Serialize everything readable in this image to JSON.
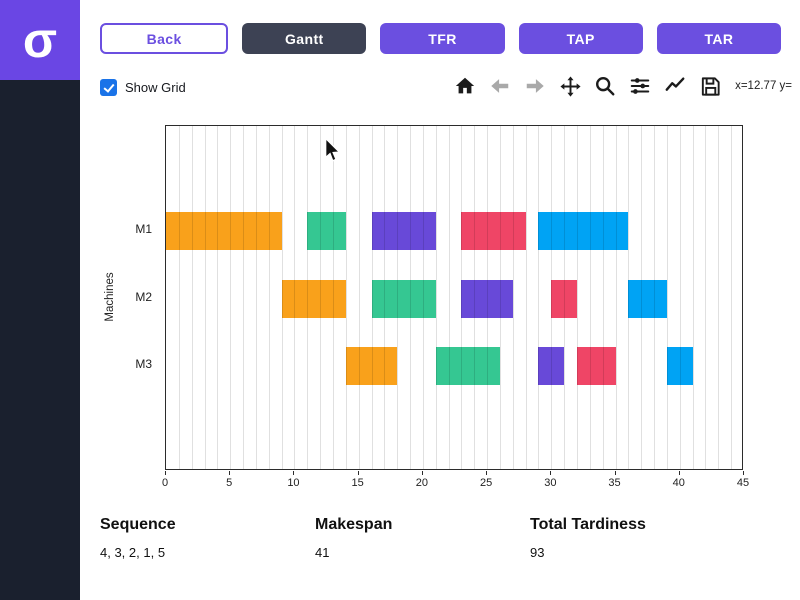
{
  "brand": {
    "logo": "σ"
  },
  "nav": {
    "back_label": "Back",
    "tabs": [
      {
        "label": "Gantt",
        "active": true
      },
      {
        "label": "TFR",
        "active": false
      },
      {
        "label": "TAP",
        "active": false
      },
      {
        "label": "TAR",
        "active": false
      }
    ]
  },
  "controls": {
    "show_grid_label": "Show Grid",
    "show_grid_checked": true
  },
  "toolbar": {
    "icons": [
      "home",
      "back",
      "forward",
      "pan",
      "zoom",
      "configure-subplots",
      "plot-options",
      "save"
    ],
    "coords": "x=12.77 y="
  },
  "chart_data": {
    "type": "gantt",
    "title": "",
    "ylabel": "Machines",
    "machines": [
      "M1",
      "M2",
      "M3"
    ],
    "xlim": [
      0,
      45
    ],
    "xticks": [
      0,
      5,
      10,
      15,
      20,
      25,
      30,
      35,
      40,
      45
    ],
    "grid": true,
    "bars": [
      {
        "machine": "M1",
        "start": 0,
        "end": 9,
        "color": "#f9a11b"
      },
      {
        "machine": "M1",
        "start": 11,
        "end": 14,
        "color": "#35c792"
      },
      {
        "machine": "M1",
        "start": 16,
        "end": 21,
        "color": "#6849d8"
      },
      {
        "machine": "M1",
        "start": 23,
        "end": 28,
        "color": "#ef4566"
      },
      {
        "machine": "M1",
        "start": 29,
        "end": 36,
        "color": "#00a3f4"
      },
      {
        "machine": "M2",
        "start": 9,
        "end": 14,
        "color": "#f9a11b"
      },
      {
        "machine": "M2",
        "start": 16,
        "end": 21,
        "color": "#35c792"
      },
      {
        "machine": "M2",
        "start": 23,
        "end": 27,
        "color": "#6849d8"
      },
      {
        "machine": "M2",
        "start": 30,
        "end": 32,
        "color": "#ef4566"
      },
      {
        "machine": "M2",
        "start": 36,
        "end": 39,
        "color": "#00a3f4"
      },
      {
        "machine": "M3",
        "start": 14,
        "end": 18,
        "color": "#f9a11b"
      },
      {
        "machine": "M3",
        "start": 21,
        "end": 26,
        "color": "#35c792"
      },
      {
        "machine": "M3",
        "start": 29,
        "end": 31,
        "color": "#6849d8"
      },
      {
        "machine": "M3",
        "start": 32,
        "end": 35,
        "color": "#ef4566"
      },
      {
        "machine": "M3",
        "start": 39,
        "end": 41,
        "color": "#00a3f4"
      }
    ]
  },
  "stats": [
    {
      "label": "Sequence",
      "value": "4, 3, 2, 1, 5"
    },
    {
      "label": "Makespan",
      "value": "41"
    },
    {
      "label": "Total Tardiness",
      "value": "93"
    }
  ],
  "colors": {
    "accent_purple": "#6b4fe0",
    "logo_purple": "#6a46e4",
    "active_tab": "#3d4254",
    "sidebar": "#1a202e",
    "checkbox_blue": "#1a73e8"
  }
}
